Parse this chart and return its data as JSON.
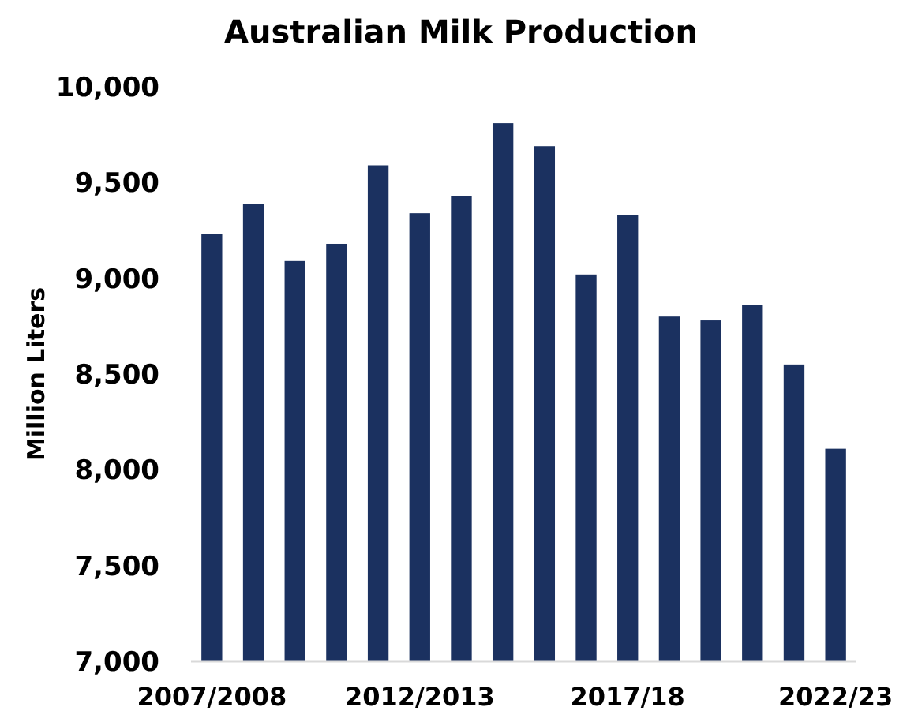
{
  "chart_data": {
    "type": "bar",
    "title": "Australian Milk Production",
    "ylabel": "Million Liters",
    "categories": [
      "2007/2008",
      null,
      null,
      null,
      null,
      "2012/2013",
      null,
      null,
      null,
      null,
      "2017/18",
      null,
      null,
      null,
      null,
      "2022/23"
    ],
    "values": [
      9230,
      9390,
      9090,
      9180,
      9590,
      9340,
      9430,
      9810,
      9690,
      9020,
      9330,
      8800,
      8780,
      8860,
      8550,
      8110
    ],
    "color": "#1b3160",
    "ylim": [
      7000,
      10000
    ],
    "yticks": [
      {
        "value": 7000,
        "label": "7,000"
      },
      {
        "value": 7500,
        "label": "7,500"
      },
      {
        "value": 8000,
        "label": "8,000"
      },
      {
        "value": 8500,
        "label": "8,500"
      },
      {
        "value": 9000,
        "label": "9,000"
      },
      {
        "value": 9500,
        "label": "9,500"
      },
      {
        "value": 10000,
        "label": "10,000"
      }
    ],
    "grid": false
  }
}
